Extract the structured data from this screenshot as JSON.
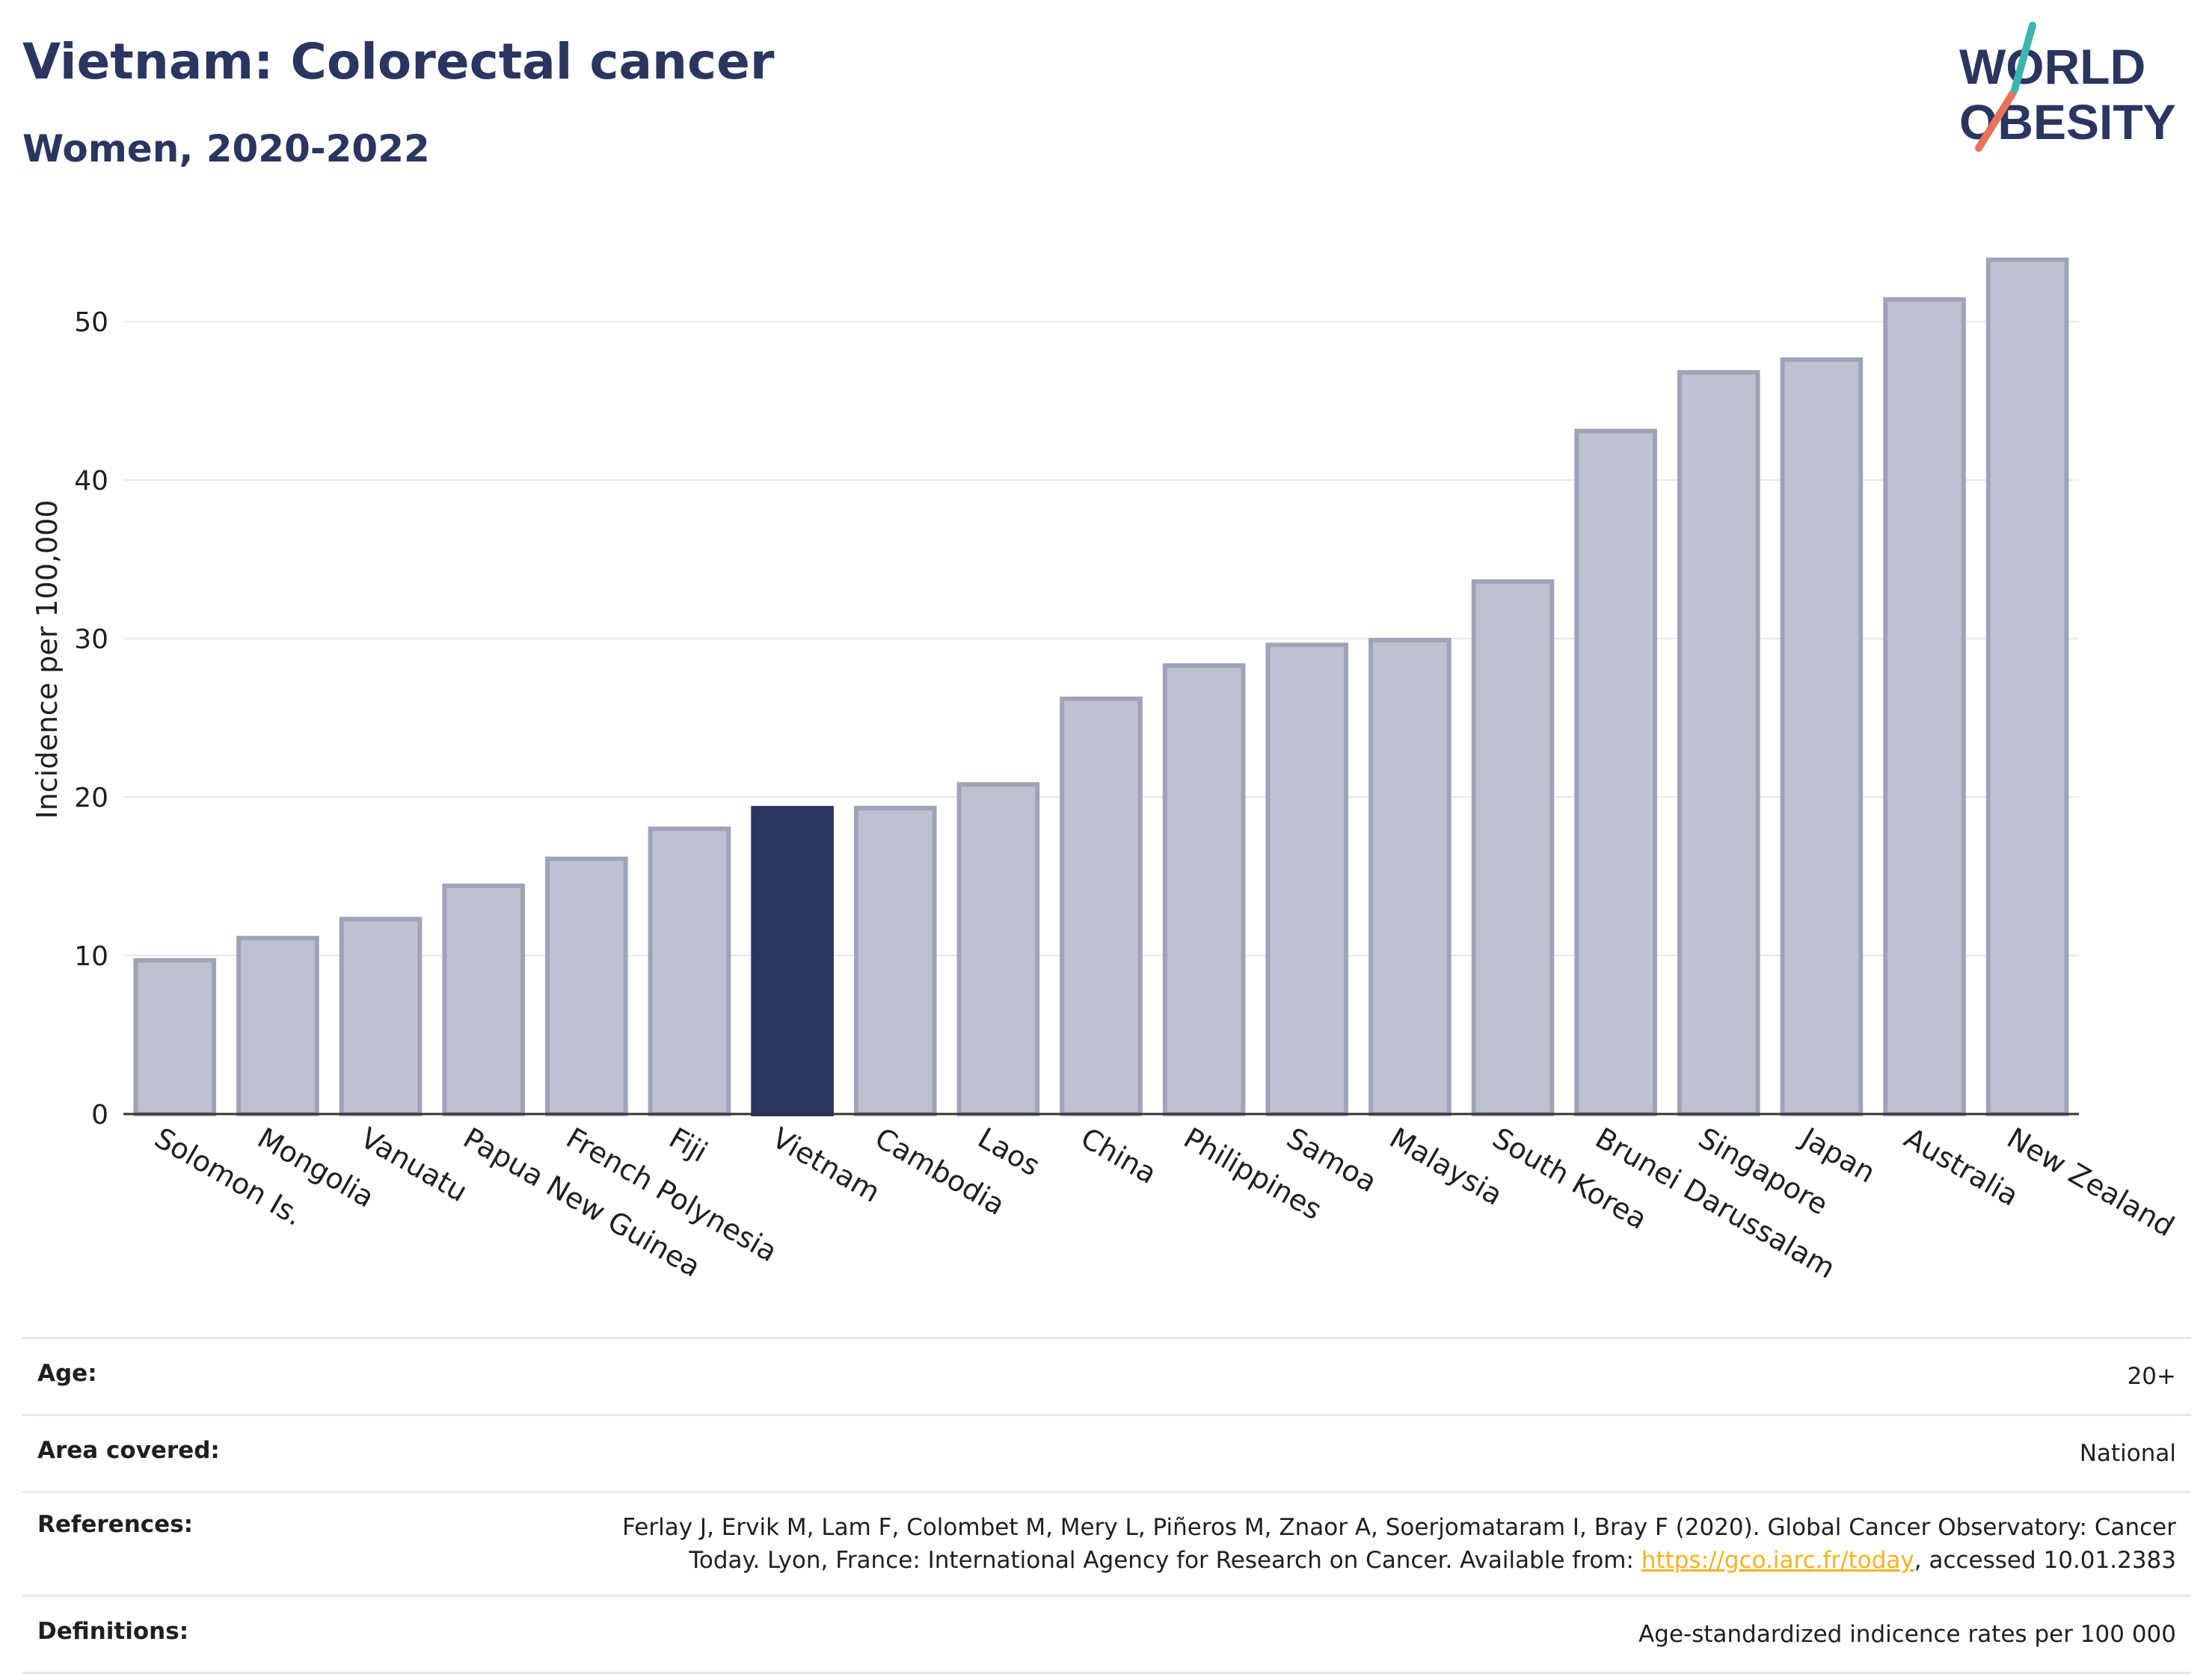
{
  "title": "Vietnam: Colorectal cancer",
  "subtitle": "Women, 2020-2022",
  "logo": {
    "line1": "WORLD",
    "line2": "OBESITY"
  },
  "chart_data": {
    "type": "bar",
    "ylabel": "Incidence per 100,000",
    "xlabel": "",
    "ylim": [
      0,
      56
    ],
    "yticks": [
      0,
      10,
      20,
      30,
      40,
      50
    ],
    "grid": true,
    "highlight": "Vietnam",
    "colors": {
      "bar": "#bec1cf",
      "bar_edge": "#9ea3b9",
      "highlight": "#2a3560",
      "grid": "#e6e7ee"
    },
    "categories": [
      "Solomon Is.",
      "Mongolia",
      "Vanuatu",
      "Papua New Guinea",
      "French Polynesia",
      "Fiji",
      "Vietnam",
      "Cambodia",
      "Laos",
      "China",
      "Philippines",
      "Samoa",
      "Malaysia",
      "South Korea",
      "Brunei Darussalam",
      "Singapore",
      "Japan",
      "Australia",
      "New Zealand"
    ],
    "values": [
      9.7,
      11.1,
      12.3,
      14.4,
      16.1,
      18.0,
      19.3,
      19.3,
      20.8,
      26.2,
      28.3,
      29.6,
      29.9,
      33.6,
      43.1,
      46.8,
      47.6,
      51.4,
      53.9
    ]
  },
  "info": {
    "age_label": "Age:",
    "age_value": "20+",
    "area_label": "Area covered:",
    "area_value": "National",
    "refs_label": "References:",
    "refs_text1": "Ferlay J, Ervik M, Lam F, Colombet M, Mery L, Piñeros M, Znaor A, Soerjomataram I, Bray F (2020). Global Cancer Observatory: Cancer",
    "refs_text2": "Today. Lyon, France: International Agency for Research on Cancer. Available from: ",
    "refs_link": "https://gco.iarc.fr/today",
    "refs_text3": ", accessed 10.01.2383",
    "def_label": "Definitions:",
    "def_value": "Age-standardized indicence rates per 100 000"
  }
}
